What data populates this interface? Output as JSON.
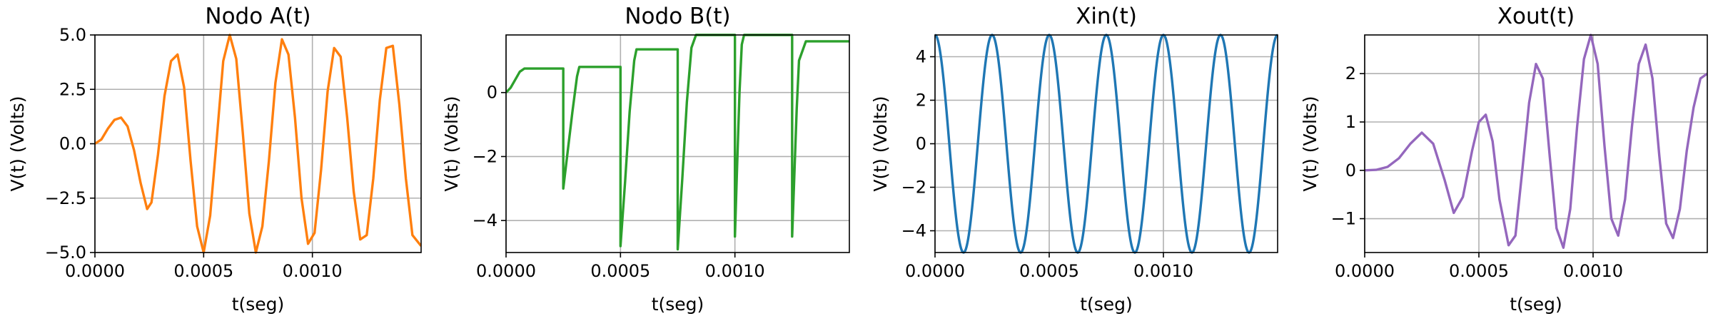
{
  "chart_data": [
    {
      "type": "line",
      "title": "Nodo A(t)",
      "xlabel": "t(seg)",
      "ylabel": "V(t) (Volts)",
      "xlim": [
        0.0,
        0.0015
      ],
      "ylim": [
        -5.0,
        5.0
      ],
      "xticks": [
        0.0,
        0.0005,
        0.001
      ],
      "xtick_labels": [
        "0.0000",
        "0.0005",
        "0.0010"
      ],
      "yticks": [
        -5.0,
        -2.5,
        0.0,
        2.5,
        5.0
      ],
      "ytick_labels": [
        "−5.0",
        "−2.5",
        "0.0",
        "2.5",
        "5.0"
      ],
      "grid": true,
      "color": "#ff7f0e",
      "series": [
        {
          "x": [
            0.0,
            3e-05,
            6e-05,
            9e-05,
            0.00012,
            0.00015,
            0.00018,
            0.00021,
            0.00024,
            0.00026,
            0.00029,
            0.00032,
            0.00035,
            0.00038,
            0.00041,
            0.00044,
            0.00047,
            0.0005,
            0.00053,
            0.00056,
            0.00059,
            0.00062,
            0.00065,
            0.00068,
            0.00071,
            0.00074,
            0.00077,
            0.0008,
            0.00083,
            0.00086,
            0.00089,
            0.00092,
            0.00095,
            0.00098,
            0.00101,
            0.00104,
            0.00107,
            0.0011,
            0.00113,
            0.00116,
            0.00119,
            0.00122,
            0.00125,
            0.00128,
            0.00131,
            0.00134,
            0.00137,
            0.0014,
            0.00143,
            0.00146,
            0.0015
          ],
          "y": [
            0.0,
            0.2,
            0.7,
            1.1,
            1.2,
            0.8,
            -0.3,
            -1.8,
            -3.0,
            -2.7,
            -0.5,
            2.2,
            3.8,
            4.1,
            2.6,
            -0.8,
            -3.8,
            -5.0,
            -3.3,
            0.2,
            3.8,
            5.0,
            3.9,
            0.5,
            -3.2,
            -5.0,
            -3.8,
            -0.8,
            2.8,
            4.8,
            4.1,
            1.2,
            -2.5,
            -4.6,
            -4.1,
            -1.2,
            2.4,
            4.4,
            4.0,
            1.2,
            -2.2,
            -4.4,
            -4.2,
            -1.6,
            2.0,
            4.4,
            4.5,
            1.8,
            -1.6,
            -4.2,
            -4.7
          ]
        }
      ]
    },
    {
      "type": "line",
      "title": "Nodo B(t)",
      "xlabel": "t(seg)",
      "ylabel": "V(t) (Volts)",
      "xlim": [
        0.0,
        0.0015
      ],
      "ylim": [
        -5.0,
        1.8
      ],
      "xticks": [
        0.0,
        0.0005,
        0.001
      ],
      "xtick_labels": [
        "0.0000",
        "0.0005",
        "0.0010"
      ],
      "yticks": [
        -4,
        -2,
        0
      ],
      "ytick_labels": [
        "−4",
        "−2",
        "0"
      ],
      "grid": true,
      "color": "#2ca02c",
      "series": [
        {
          "x": [
            0.0,
            2e-05,
            4e-05,
            6e-05,
            8e-05,
            0.00025,
            0.00025,
            0.00027,
            0.00029,
            0.00031,
            0.00032,
            0.0005,
            0.0005,
            0.00052,
            0.00054,
            0.00056,
            0.00057,
            0.00075,
            0.00075,
            0.00077,
            0.00079,
            0.00081,
            0.00083,
            0.001,
            0.001,
            0.00101,
            0.00102,
            0.00103,
            0.00104,
            0.00125,
            0.00125,
            0.00126,
            0.00127,
            0.00128,
            0.00131,
            0.0015
          ],
          "y": [
            0.0,
            0.15,
            0.4,
            0.65,
            0.75,
            0.75,
            -3.0,
            -1.8,
            -0.6,
            0.5,
            0.8,
            0.8,
            -4.8,
            -2.8,
            -0.6,
            1.0,
            1.35,
            1.35,
            -4.9,
            -2.7,
            -0.3,
            1.4,
            1.8,
            1.8,
            -4.5,
            -2.2,
            0.0,
            1.5,
            1.8,
            1.8,
            -4.5,
            -2.5,
            -0.5,
            1.0,
            1.6,
            1.6
          ]
        }
      ]
    },
    {
      "type": "line",
      "title": "Xin(t)",
      "xlabel": "t(seg)",
      "ylabel": "V(t) (Volts)",
      "xlim": [
        0.0,
        0.0015
      ],
      "ylim": [
        -5.0,
        5.0
      ],
      "xticks": [
        0.0,
        0.0005,
        0.001
      ],
      "xtick_labels": [
        "0.0000",
        "0.0005",
        "0.0010"
      ],
      "yticks": [
        -4,
        -2,
        0,
        2,
        4
      ],
      "ytick_labels": [
        "−4",
        "−2",
        "0",
        "2",
        "4"
      ],
      "grid": true,
      "color": "#1f77b4",
      "function": "5cos(2π·4000·t)"
    },
    {
      "type": "line",
      "title": "Xout(t)",
      "xlabel": "t(seg)",
      "ylabel": "V(t) (Volts)",
      "xlim": [
        0.0,
        0.0015
      ],
      "ylim": [
        -1.7,
        2.8
      ],
      "xticks": [
        0.0,
        0.0005,
        0.001
      ],
      "xtick_labels": [
        "0.0000",
        "0.0005",
        "0.0010"
      ],
      "yticks": [
        -1,
        0,
        1,
        2
      ],
      "ytick_labels": [
        "−1",
        "0",
        "1",
        "2"
      ],
      "grid": true,
      "color": "#9467bd",
      "series": [
        {
          "x": [
            0.0,
            5e-05,
            0.0001,
            0.00015,
            0.0002,
            0.00025,
            0.0003,
            0.00035,
            0.00039,
            0.00043,
            0.00047,
            0.0005,
            0.00053,
            0.00056,
            0.00059,
            0.00063,
            0.00066,
            0.00069,
            0.00072,
            0.00075,
            0.00078,
            0.00081,
            0.00084,
            0.00087,
            0.0009,
            0.00093,
            0.00096,
            0.00099,
            0.00102,
            0.00105,
            0.00108,
            0.00111,
            0.00114,
            0.00117,
            0.0012,
            0.00123,
            0.00126,
            0.00129,
            0.00132,
            0.00135,
            0.00138,
            0.00141,
            0.00144,
            0.00147,
            0.0015
          ],
          "y": [
            0.0,
            0.01,
            0.07,
            0.25,
            0.55,
            0.78,
            0.55,
            -0.2,
            -0.88,
            -0.55,
            0.4,
            1.0,
            1.15,
            0.6,
            -0.6,
            -1.55,
            -1.35,
            0.0,
            1.4,
            2.2,
            1.9,
            0.3,
            -1.2,
            -1.6,
            -0.8,
            0.9,
            2.3,
            2.8,
            2.2,
            0.5,
            -1.0,
            -1.35,
            -0.6,
            0.9,
            2.2,
            2.6,
            1.9,
            0.3,
            -1.1,
            -1.4,
            -0.8,
            0.4,
            1.3,
            1.9,
            2.0
          ]
        }
      ]
    }
  ]
}
